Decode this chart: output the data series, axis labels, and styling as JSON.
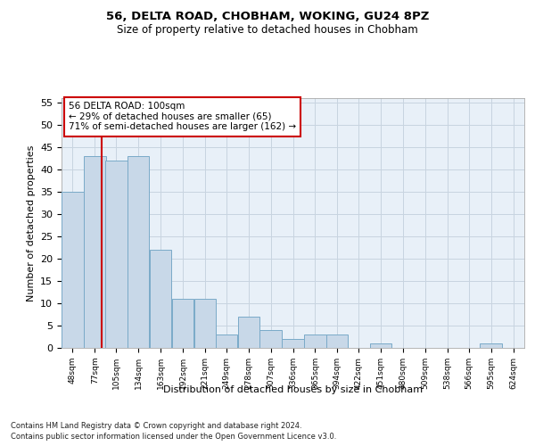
{
  "title1": "56, DELTA ROAD, CHOBHAM, WOKING, GU24 8PZ",
  "title2": "Size of property relative to detached houses in Chobham",
  "xlabel": "Distribution of detached houses by size in Chobham",
  "ylabel": "Number of detached properties",
  "footnote1": "Contains HM Land Registry data © Crown copyright and database right 2024.",
  "footnote2": "Contains public sector information licensed under the Open Government Licence v3.0.",
  "categories": [
    "48sqm",
    "77sqm",
    "105sqm",
    "134sqm",
    "163sqm",
    "192sqm",
    "221sqm",
    "249sqm",
    "278sqm",
    "307sqm",
    "336sqm",
    "365sqm",
    "394sqm",
    "422sqm",
    "451sqm",
    "480sqm",
    "509sqm",
    "538sqm",
    "566sqm",
    "595sqm",
    "624sqm"
  ],
  "values": [
    35,
    43,
    42,
    43,
    22,
    11,
    11,
    3,
    7,
    4,
    2,
    3,
    3,
    0,
    1,
    0,
    0,
    0,
    0,
    1,
    0
  ],
  "bar_color": "#c8d8e8",
  "bar_edge_color": "#7aaac8",
  "grid_color": "#c8d4e0",
  "bg_color": "#e8f0f8",
  "annotation_box_color": "#cc0000",
  "annotation_text": "56 DELTA ROAD: 100sqm\n← 29% of detached houses are smaller (65)\n71% of semi-detached houses are larger (162) →",
  "vline_x": 100,
  "vline_color": "#cc0000",
  "ylim": [
    0,
    56
  ],
  "bin_starts": [
    48,
    77,
    105,
    134,
    163,
    192,
    221,
    249,
    278,
    307,
    336,
    365,
    394,
    422,
    451,
    480,
    509,
    538,
    566,
    595,
    624
  ],
  "bin_width": 29
}
